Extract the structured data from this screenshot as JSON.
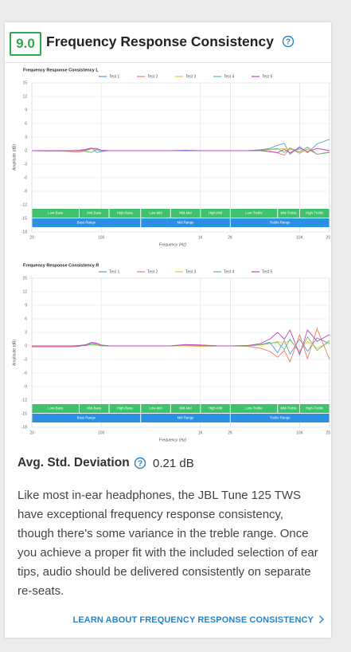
{
  "header": {
    "score": "9.0",
    "title": "Frequency Response Consistency"
  },
  "chart_data": [
    {
      "type": "line",
      "title": "Frequency Response Consistency L",
      "x_label": "Frequency (Hz)",
      "y_label": "Amplitude (dB)",
      "log_x": true,
      "grid": true,
      "x": [
        20,
        30,
        40,
        50,
        60,
        70,
        80,
        90,
        100,
        120,
        150,
        200,
        300,
        500,
        700,
        1000,
        1500,
        2000,
        3000,
        4000,
        5000,
        6000,
        7000,
        8000,
        10000,
        12000,
        15000,
        20000
      ],
      "xlim": [
        20,
        20000
      ],
      "xticks": [
        20,
        100,
        {
          "value": 1000,
          "label": "1K"
        },
        {
          "value": 2000,
          "label": "2K"
        },
        {
          "value": 10000,
          "label": "10K"
        },
        {
          "value": 20000,
          "label": "20K"
        }
      ],
      "ylim": [
        -18,
        15
      ],
      "yticks": [
        15,
        12,
        9,
        6,
        3,
        0,
        -3,
        -6,
        -9,
        -12,
        -15,
        -18
      ],
      "series": [
        {
          "name": "Test 1",
          "color": "#5b9bd5",
          "values": [
            0,
            0,
            0,
            0,
            0.1,
            0.3,
            0.6,
            -0.4,
            -0.2,
            0,
            0,
            0,
            0,
            0,
            0.1,
            0,
            0,
            0,
            0,
            0.2,
            0.5,
            1.2,
            1.6,
            -0.8,
            0.9,
            -0.5,
            1.5,
            2.5
          ]
        },
        {
          "name": "Test 2",
          "color": "#ef7d5f",
          "values": [
            0,
            -0.1,
            -0.1,
            -0.2,
            -0.3,
            0,
            0.4,
            0.3,
            0,
            0,
            0,
            0,
            0,
            0,
            0,
            0,
            0,
            0,
            0,
            0,
            -0.2,
            -0.5,
            -1,
            0.5,
            -0.6,
            0.4,
            -0.8,
            -0.3
          ]
        },
        {
          "name": "Test 3",
          "color": "#f4c043",
          "values": [
            0,
            0,
            0,
            0,
            0,
            0.2,
            0.4,
            0.2,
            0,
            0,
            0,
            0,
            0,
            0,
            0,
            0,
            0,
            0,
            0,
            0,
            0.2,
            0.3,
            0.5,
            0.2,
            0.3,
            -0.3,
            0.5,
            0
          ]
        },
        {
          "name": "Test 4",
          "color": "#5cc26a",
          "values": [
            0,
            0,
            0,
            0,
            0,
            -0.2,
            -0.4,
            0.2,
            0,
            0,
            0,
            0,
            0,
            0,
            0,
            0,
            0,
            0,
            0,
            0.1,
            0.3,
            0.5,
            -0.4,
            0.6,
            -0.3,
            0.8,
            -0.8,
            -0.4
          ]
        },
        {
          "name": "Test 5",
          "color": "#c146c4",
          "values": [
            0,
            0,
            0,
            0,
            0,
            0.2,
            0.5,
            0.5,
            0.1,
            0,
            0,
            0,
            0,
            0,
            0,
            0,
            0,
            0,
            0,
            0,
            -0.2,
            -0.4,
            0.3,
            -0.5,
            0.6,
            -0.2,
            0.5,
            0
          ]
        }
      ],
      "bands": [
        {
          "label": "Low-Bass",
          "from": 20,
          "to": 60
        },
        {
          "label": "Mid-Bass",
          "from": 60,
          "to": 120
        },
        {
          "label": "High-Bass",
          "from": 120,
          "to": 250
        },
        {
          "label": "Low-Mid",
          "from": 250,
          "to": 500
        },
        {
          "label": "Mid-Mid",
          "from": 500,
          "to": 1000
        },
        {
          "label": "High-Mid",
          "from": 1000,
          "to": 2000
        },
        {
          "label": "Low-Treble",
          "from": 2000,
          "to": 6000
        },
        {
          "label": "Mid-Treble",
          "from": 6000,
          "to": 10000
        },
        {
          "label": "High-Treble",
          "from": 10000,
          "to": 20000
        }
      ],
      "ranges": [
        {
          "label": "Bass Range",
          "from": 20,
          "to": 250
        },
        {
          "label": "Mid Range",
          "from": 250,
          "to": 2000
        },
        {
          "label": "Treble Range",
          "from": 2000,
          "to": 20000
        }
      ]
    },
    {
      "type": "line",
      "title": "Frequency Response Consistency R",
      "x_label": "Frequency (Hz)",
      "y_label": "Amplitude (dB)",
      "log_x": true,
      "grid": true,
      "x": [
        20,
        30,
        40,
        50,
        60,
        70,
        80,
        90,
        100,
        120,
        150,
        200,
        300,
        500,
        700,
        1000,
        1500,
        2000,
        3000,
        4000,
        5000,
        6000,
        7000,
        8000,
        10000,
        12000,
        15000,
        20000
      ],
      "xlim": [
        20,
        20000
      ],
      "xticks": [
        20,
        100,
        {
          "value": 1000,
          "label": "1K"
        },
        {
          "value": 2000,
          "label": "2K"
        },
        {
          "value": 10000,
          "label": "10K"
        },
        {
          "value": 20000,
          "label": "20K"
        }
      ],
      "ylim": [
        -18,
        15
      ],
      "yticks": [
        15,
        12,
        9,
        6,
        3,
        0,
        -3,
        -6,
        -9,
        -12,
        -15,
        -18
      ],
      "series": [
        {
          "name": "Test 1",
          "color": "#5b9bd5",
          "values": [
            0,
            0,
            0,
            0,
            0.1,
            0.3,
            0.8,
            0.6,
            0.2,
            0,
            0,
            0,
            0,
            0,
            0.3,
            0.2,
            0,
            0,
            0,
            0.3,
            0.8,
            -1.5,
            1.2,
            -1.8,
            1.5,
            -1.2,
            1.8,
            0.5
          ]
        },
        {
          "name": "Test 2",
          "color": "#ef7d5f",
          "values": [
            -0.2,
            -0.2,
            -0.2,
            -0.2,
            -0.1,
            0.3,
            0.6,
            0.4,
            0.1,
            0,
            0,
            0,
            0,
            0,
            0,
            -0.1,
            0,
            0,
            -0.1,
            -0.5,
            -1.2,
            -2.5,
            -1,
            -3.5,
            2.5,
            -2.8,
            3.8,
            -3
          ]
        },
        {
          "name": "Test 3",
          "color": "#f4c043",
          "values": [
            0,
            0,
            0,
            0,
            0,
            0.1,
            0.3,
            0.3,
            0.1,
            0,
            0,
            0,
            0,
            0,
            0,
            0,
            0,
            0,
            0,
            0.2,
            0.5,
            1,
            0.5,
            1.2,
            -1,
            1,
            -0.5,
            0.8
          ]
        },
        {
          "name": "Test 4",
          "color": "#5cc26a",
          "values": [
            0,
            0,
            0,
            0,
            0,
            0.1,
            0.3,
            0.2,
            0,
            0,
            0,
            0,
            0,
            0,
            0.2,
            0.1,
            0,
            0,
            0,
            0.3,
            0.6,
            0.8,
            -0.8,
            1.5,
            -1.5,
            2,
            -1,
            1.2
          ]
        },
        {
          "name": "Test 5",
          "color": "#c146c4",
          "values": [
            0,
            0,
            0,
            0,
            0,
            0.2,
            0.6,
            0.6,
            0.2,
            0,
            0,
            0,
            0,
            0,
            0.3,
            0.2,
            0,
            0,
            0.1,
            0.5,
            1.5,
            3,
            1.5,
            3.5,
            -2,
            3.5,
            1,
            2.5
          ]
        }
      ],
      "bands": [
        {
          "label": "Low-Bass",
          "from": 20,
          "to": 60
        },
        {
          "label": "Mid-Bass",
          "from": 60,
          "to": 120
        },
        {
          "label": "High-Bass",
          "from": 120,
          "to": 250
        },
        {
          "label": "Low-Mid",
          "from": 250,
          "to": 500
        },
        {
          "label": "Mid-Mid",
          "from": 500,
          "to": 1000
        },
        {
          "label": "High-Mid",
          "from": 1000,
          "to": 2000
        },
        {
          "label": "Low-Treble",
          "from": 2000,
          "to": 6000
        },
        {
          "label": "Mid-Treble",
          "from": 6000,
          "to": 10000
        },
        {
          "label": "High-Treble",
          "from": 10000,
          "to": 20000
        }
      ],
      "ranges": [
        {
          "label": "Bass Range",
          "from": 20,
          "to": 250
        },
        {
          "label": "Mid Range",
          "from": 250,
          "to": 2000
        },
        {
          "label": "Treble Range",
          "from": 2000,
          "to": 20000
        }
      ]
    }
  ],
  "metric": {
    "name": "Avg. Std. Deviation",
    "value": "0.21 dB"
  },
  "description": "Like most in-ear headphones, the JBL Tune 125 TWS have exceptional frequency response consistency, though there's some variance in the treble range. Once you achieve a proper fit with the included selection of ear tips, audio should be delivered consistently on separate re-seats.",
  "link": "LEARN ABOUT FREQUENCY RESPONSE CONSISTENCY"
}
